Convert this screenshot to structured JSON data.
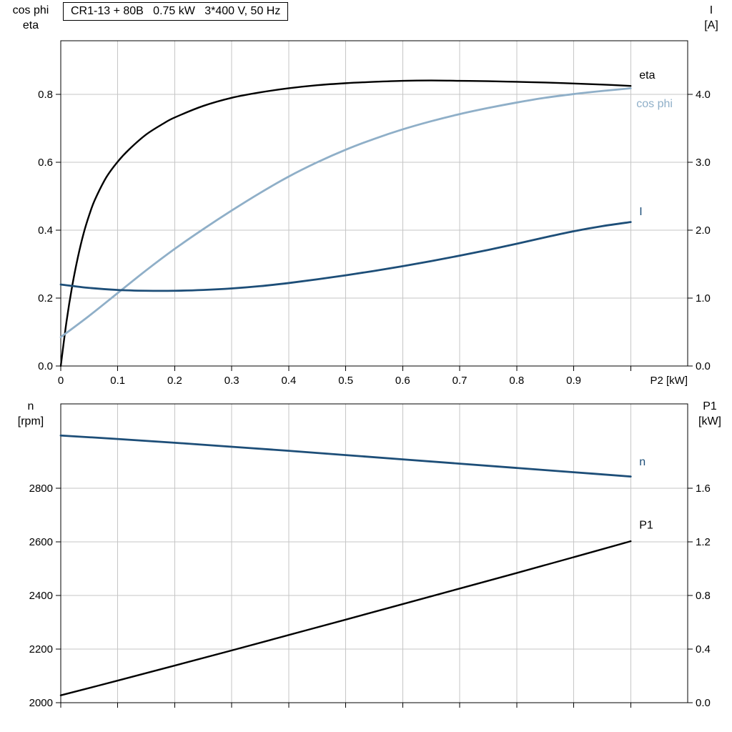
{
  "title_box": "CR1-13 + 80B   0.75 kW   3*400 V, 50 Hz",
  "axis_corner_labels": {
    "top_chart_left": [
      "cos phi",
      "eta"
    ],
    "top_chart_right": [
      "I",
      "[A]"
    ],
    "bottom_chart_left": [
      "n",
      "[rpm]"
    ],
    "bottom_chart_right": [
      "P1",
      "[kW]"
    ]
  },
  "colors": {
    "black": "#000000",
    "dark_blue": "#1d4e78",
    "light_blue": "#8fafc8",
    "grid": "#c6c6c6",
    "axis": "#000000",
    "background": "#ffffff"
  },
  "chart_data": [
    {
      "id": "top",
      "type": "line",
      "title": "CR1-13 + 80B   0.75 kW   3*400 V, 50 Hz",
      "x_axis": {
        "label": "P2 [kW]",
        "range": [
          0,
          1.1
        ],
        "grid": [
          0.1,
          0.2,
          0.3,
          0.4,
          0.5,
          0.6,
          0.7,
          0.8,
          0.9,
          1.0
        ],
        "tick_values": [
          0,
          0.1,
          0.2,
          0.3,
          0.4,
          0.5,
          0.6,
          0.7,
          0.8,
          0.9
        ],
        "tick_labels": [
          "0",
          "0.1",
          "0.2",
          "0.3",
          "0.4",
          "0.5",
          "0.6",
          "0.7",
          "0.8",
          "0.9"
        ],
        "show_tick_labels": true
      },
      "left_axis": {
        "label": "cos phi / eta",
        "range": [
          0,
          0.958
        ],
        "tick_values": [
          0,
          0.2,
          0.4,
          0.6,
          0.8
        ],
        "tick_labels": [
          "0.0",
          "0.2",
          "0.4",
          "0.6",
          "0.8"
        ]
      },
      "right_axis": {
        "label": "I [A]",
        "range": [
          0,
          4.79
        ],
        "tick_values": [
          0,
          1,
          2,
          3,
          4
        ],
        "tick_labels": [
          "0.0",
          "1.0",
          "2.0",
          "3.0",
          "4.0"
        ]
      },
      "series": [
        {
          "name": "eta",
          "axis": "left",
          "color": "#000000",
          "width": 2.4,
          "label": {
            "text": "eta",
            "x": 1.015,
            "y": 0.846
          },
          "points": [
            [
              0,
              0
            ],
            [
              0.01,
              0.13
            ],
            [
              0.02,
              0.235
            ],
            [
              0.03,
              0.32
            ],
            [
              0.04,
              0.39
            ],
            [
              0.05,
              0.445
            ],
            [
              0.06,
              0.49
            ],
            [
              0.08,
              0.556
            ],
            [
              0.1,
              0.602
            ],
            [
              0.12,
              0.638
            ],
            [
              0.15,
              0.682
            ],
            [
              0.18,
              0.714
            ],
            [
              0.2,
              0.732
            ],
            [
              0.25,
              0.766
            ],
            [
              0.3,
              0.79
            ],
            [
              0.35,
              0.806
            ],
            [
              0.4,
              0.818
            ],
            [
              0.45,
              0.827
            ],
            [
              0.5,
              0.833
            ],
            [
              0.55,
              0.837
            ],
            [
              0.6,
              0.84
            ],
            [
              0.65,
              0.841
            ],
            [
              0.7,
              0.84
            ],
            [
              0.75,
              0.839
            ],
            [
              0.8,
              0.837
            ],
            [
              0.85,
              0.835
            ],
            [
              0.9,
              0.832
            ],
            [
              0.95,
              0.829
            ],
            [
              1.0,
              0.825
            ]
          ]
        },
        {
          "name": "cos-phi",
          "axis": "left",
          "color": "#8fafc8",
          "width": 2.8,
          "label": {
            "text": "cos phi",
            "x": 1.01,
            "y": 0.762
          },
          "points": [
            [
              0,
              0.085
            ],
            [
              0.05,
              0.148
            ],
            [
              0.1,
              0.215
            ],
            [
              0.15,
              0.282
            ],
            [
              0.2,
              0.345
            ],
            [
              0.25,
              0.403
            ],
            [
              0.3,
              0.458
            ],
            [
              0.35,
              0.51
            ],
            [
              0.4,
              0.558
            ],
            [
              0.45,
              0.6
            ],
            [
              0.5,
              0.637
            ],
            [
              0.55,
              0.669
            ],
            [
              0.6,
              0.697
            ],
            [
              0.65,
              0.721
            ],
            [
              0.7,
              0.742
            ],
            [
              0.75,
              0.76
            ],
            [
              0.8,
              0.776
            ],
            [
              0.85,
              0.79
            ],
            [
              0.9,
              0.801
            ],
            [
              0.95,
              0.81
            ],
            [
              1.0,
              0.818
            ]
          ]
        },
        {
          "name": "current",
          "axis": "right",
          "color": "#1d4e78",
          "width": 2.8,
          "label": {
            "text": "I",
            "x": 1.015,
            "y": 2.22
          },
          "points": [
            [
              0,
              1.2
            ],
            [
              0.05,
              1.15
            ],
            [
              0.1,
              1.12
            ],
            [
              0.15,
              1.108
            ],
            [
              0.2,
              1.108
            ],
            [
              0.25,
              1.12
            ],
            [
              0.3,
              1.142
            ],
            [
              0.35,
              1.176
            ],
            [
              0.4,
              1.222
            ],
            [
              0.45,
              1.276
            ],
            [
              0.5,
              1.336
            ],
            [
              0.55,
              1.4
            ],
            [
              0.6,
              1.47
            ],
            [
              0.65,
              1.545
            ],
            [
              0.7,
              1.625
            ],
            [
              0.75,
              1.71
            ],
            [
              0.8,
              1.8
            ],
            [
              0.85,
              1.895
            ],
            [
              0.9,
              1.985
            ],
            [
              0.95,
              2.06
            ],
            [
              1.0,
              2.12
            ]
          ]
        }
      ]
    },
    {
      "id": "bottom",
      "type": "line",
      "title": "",
      "x_axis": {
        "label": "",
        "range": [
          0,
          1.1
        ],
        "grid": [
          0.1,
          0.2,
          0.3,
          0.4,
          0.5,
          0.6,
          0.7,
          0.8,
          0.9,
          1.0
        ],
        "tick_values": [],
        "tick_labels": [],
        "show_tick_labels": false
      },
      "left_axis": {
        "label": "n [rpm]",
        "range": [
          2000,
          3115
        ],
        "tick_values": [
          2000,
          2200,
          2400,
          2600,
          2800
        ],
        "tick_labels": [
          "2000",
          "2200",
          "2400",
          "2600",
          "2800"
        ]
      },
      "right_axis": {
        "label": "P1 [kW]",
        "range": [
          0,
          2.23
        ],
        "tick_values": [
          0,
          0.4,
          0.8,
          1.2,
          1.6
        ],
        "tick_labels": [
          "0.0",
          "0.4",
          "0.8",
          "1.2",
          "1.6"
        ]
      },
      "series": [
        {
          "name": "speed",
          "axis": "left",
          "color": "#1d4e78",
          "width": 2.8,
          "label": {
            "text": "n",
            "x": 1.015,
            "y": 2886
          },
          "points": [
            [
              0,
              2997
            ],
            [
              0.1,
              2984
            ],
            [
              0.2,
              2970
            ],
            [
              0.3,
              2955
            ],
            [
              0.4,
              2940
            ],
            [
              0.5,
              2924
            ],
            [
              0.6,
              2908
            ],
            [
              0.7,
              2892
            ],
            [
              0.8,
              2876
            ],
            [
              0.9,
              2860
            ],
            [
              1.0,
              2844
            ]
          ]
        },
        {
          "name": "power-p1",
          "axis": "right",
          "color": "#000000",
          "width": 2.4,
          "label": {
            "text": "P1",
            "x": 1.015,
            "y": 1.3
          },
          "points": [
            [
              0,
              0.055
            ],
            [
              0.1,
              0.165
            ],
            [
              0.2,
              0.277
            ],
            [
              0.3,
              0.39
            ],
            [
              0.4,
              0.505
            ],
            [
              0.5,
              0.62
            ],
            [
              0.6,
              0.736
            ],
            [
              0.7,
              0.852
            ],
            [
              0.8,
              0.968
            ],
            [
              0.9,
              1.086
            ],
            [
              1.0,
              1.205
            ]
          ]
        }
      ]
    }
  ]
}
